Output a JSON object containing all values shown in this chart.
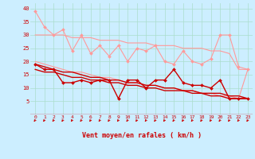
{
  "background_color": "#cceeff",
  "grid_color": "#aaddcc",
  "xlabel": "Vent moyen/en rafales ( km/h )",
  "xlabel_color": "#cc0000",
  "tick_label_color": "#cc0000",
  "arrow_color": "#cc0000",
  "x_ticks": [
    0,
    1,
    2,
    3,
    4,
    5,
    6,
    7,
    8,
    9,
    10,
    11,
    12,
    13,
    14,
    15,
    16,
    17,
    18,
    19,
    20,
    21,
    22,
    23
  ],
  "ylim": [
    0,
    42
  ],
  "xlim": [
    -0.5,
    23.5
  ],
  "yticks": [
    5,
    10,
    15,
    20,
    25,
    30,
    35,
    40
  ],
  "series": [
    {
      "color": "#ff9999",
      "linewidth": 0.8,
      "marker": "D",
      "markersize": 2.0,
      "data": [
        39,
        33,
        30,
        32,
        24,
        30,
        23,
        26,
        22,
        26,
        20,
        25,
        24,
        26,
        20,
        19,
        24,
        20,
        19,
        21,
        30,
        30,
        18,
        17
      ]
    },
    {
      "color": "#ff9999",
      "linewidth": 0.8,
      "marker": null,
      "markersize": 0,
      "data": [
        30,
        30,
        30,
        30,
        29,
        29,
        29,
        28,
        28,
        28,
        27,
        27,
        27,
        26,
        26,
        26,
        25,
        25,
        25,
        24,
        24,
        23,
        17,
        17
      ]
    },
    {
      "color": "#ff9999",
      "linewidth": 0.8,
      "marker": null,
      "markersize": 0,
      "data": [
        20,
        19,
        18,
        17,
        16,
        16,
        15,
        14,
        14,
        13,
        12,
        12,
        11,
        11,
        10,
        10,
        9,
        9,
        8,
        8,
        7,
        7,
        6,
        17
      ]
    },
    {
      "color": "#cc0000",
      "linewidth": 1.0,
      "marker": "D",
      "markersize": 2.0,
      "data": [
        19,
        17,
        17,
        12,
        12,
        13,
        12,
        13,
        13,
        6,
        13,
        13,
        10,
        13,
        13,
        17,
        12,
        11,
        11,
        10,
        13,
        6,
        6,
        6
      ]
    },
    {
      "color": "#cc0000",
      "linewidth": 1.0,
      "marker": null,
      "markersize": 0,
      "data": [
        19,
        18,
        17,
        16,
        16,
        15,
        14,
        14,
        13,
        13,
        12,
        12,
        11,
        11,
        10,
        10,
        9,
        9,
        8,
        8,
        8,
        7,
        7,
        6
      ]
    },
    {
      "color": "#cc0000",
      "linewidth": 1.0,
      "marker": null,
      "markersize": 0,
      "data": [
        17,
        16,
        16,
        15,
        14,
        14,
        13,
        13,
        12,
        12,
        11,
        11,
        10,
        10,
        9,
        9,
        9,
        8,
        8,
        7,
        7,
        6,
        6,
        6
      ]
    }
  ]
}
